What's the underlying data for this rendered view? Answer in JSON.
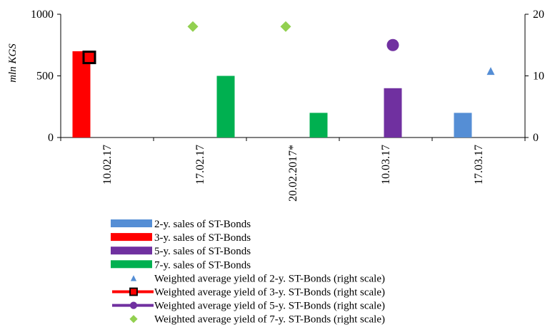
{
  "chart_data": {
    "type": "bar",
    "categories": [
      "10.02.17",
      "17.02.17",
      "20.02.2017*",
      "10.03.17",
      "17.03.17"
    ],
    "ylabel": "mln KGS",
    "ylim": [
      0,
      1000
    ],
    "y_ticks": [
      "0",
      "500",
      "1000"
    ],
    "y2lim": [
      0,
      20
    ],
    "y2_ticks": [
      "0",
      "10",
      "20"
    ],
    "legend_position": "bottom",
    "series": [
      {
        "name": "2-y. sales of ST-Bonds",
        "type": "bar",
        "color": "#558ED5",
        "values": [
          null,
          null,
          null,
          null,
          200
        ]
      },
      {
        "name": "3-y. sales of ST-Bonds",
        "type": "bar",
        "color": "#FF0000",
        "values": [
          700,
          null,
          null,
          null,
          null
        ]
      },
      {
        "name": "5-y. sales of ST-Bonds",
        "type": "bar",
        "color": "#7030A0",
        "values": [
          null,
          null,
          null,
          400,
          null
        ]
      },
      {
        "name": "7-y. sales of ST-Bonds",
        "type": "bar",
        "color": "#00B050",
        "values": [
          null,
          500,
          200,
          null,
          null
        ]
      },
      {
        "name": "Weighted average yield of 2-y. ST-Bonds (right scale)",
        "type": "marker",
        "marker": "triangle",
        "axis": "right",
        "color": "#558ED5",
        "values": [
          null,
          null,
          null,
          null,
          10.8
        ]
      },
      {
        "name": "Weighted average yield of 3-y. ST-Bonds (right scale)",
        "type": "marker",
        "marker": "square",
        "axis": "right",
        "color": "#FF0000",
        "values": [
          13.0,
          null,
          null,
          null,
          null
        ]
      },
      {
        "name": "Weighted average yield of 5-y. ST-Bonds (right scale)",
        "type": "marker",
        "marker": "circle",
        "axis": "right",
        "color": "#7030A0",
        "values": [
          null,
          null,
          null,
          15.0,
          null
        ]
      },
      {
        "name": "Weighted average yield of 7-y. ST-Bonds (right scale)",
        "type": "marker",
        "marker": "diamond",
        "axis": "right",
        "color": "#92D050",
        "values": [
          null,
          18.0,
          18.0,
          null,
          null
        ]
      }
    ]
  }
}
